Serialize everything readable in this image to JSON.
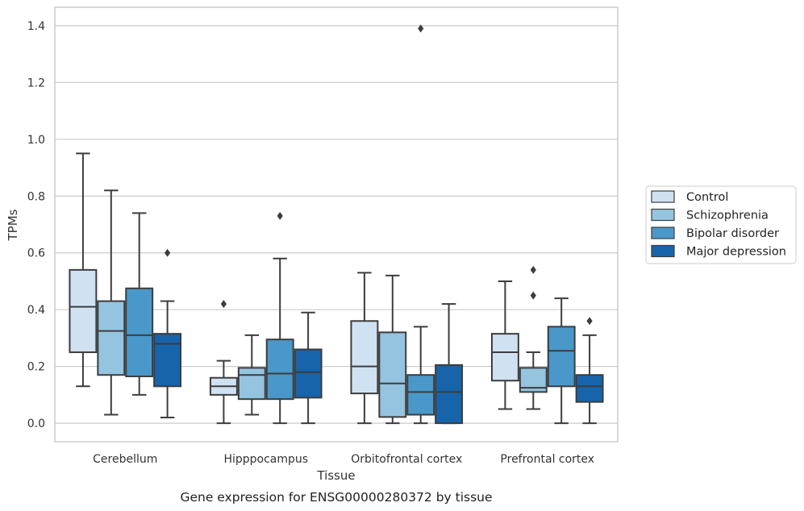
{
  "chart_data": {
    "type": "box",
    "xlabel": "Tissue",
    "ylabel": "TPMs",
    "caption": "Gene expression for ENSG00000280372 by tissue",
    "ylim": [
      -0.065,
      1.465
    ],
    "yticks": [
      "0.0",
      "0.2",
      "0.4",
      "0.6",
      "0.8",
      "1.0",
      "1.2",
      "1.4"
    ],
    "grid": "horizontal",
    "legend_position": "right",
    "categories": [
      "Cerebellum",
      "Hipppocampus",
      "Orbitofrontal cortex",
      "Prefrontal cortex"
    ],
    "series": [
      {
        "name": "Control",
        "color": "#d0e1f2",
        "boxes": [
          {
            "whislo": 0.13,
            "q1": 0.25,
            "med": 0.41,
            "q3": 0.54,
            "whishi": 0.95,
            "fliers": []
          },
          {
            "whislo": 0.0,
            "q1": 0.1,
            "med": 0.13,
            "q3": 0.16,
            "whishi": 0.22,
            "fliers": [
              0.42
            ]
          },
          {
            "whislo": 0.0,
            "q1": 0.105,
            "med": 0.2,
            "q3": 0.36,
            "whishi": 0.53,
            "fliers": []
          },
          {
            "whislo": 0.05,
            "q1": 0.15,
            "med": 0.25,
            "q3": 0.315,
            "whishi": 0.5,
            "fliers": []
          }
        ]
      },
      {
        "name": "Schizophrenia",
        "color": "#94c4df",
        "boxes": [
          {
            "whislo": 0.03,
            "q1": 0.17,
            "med": 0.325,
            "q3": 0.43,
            "whishi": 0.82,
            "fliers": []
          },
          {
            "whislo": 0.03,
            "q1": 0.085,
            "med": 0.17,
            "q3": 0.195,
            "whishi": 0.31,
            "fliers": []
          },
          {
            "whislo": 0.0,
            "q1": 0.022,
            "med": 0.14,
            "q3": 0.32,
            "whishi": 0.52,
            "fliers": []
          },
          {
            "whislo": 0.05,
            "q1": 0.11,
            "med": 0.125,
            "q3": 0.195,
            "whishi": 0.25,
            "fliers": [
              0.45,
              0.54
            ]
          }
        ]
      },
      {
        "name": "Bipolar disorder",
        "color": "#4a98c9",
        "boxes": [
          {
            "whislo": 0.1,
            "q1": 0.165,
            "med": 0.31,
            "q3": 0.475,
            "whishi": 0.74,
            "fliers": []
          },
          {
            "whislo": 0.0,
            "q1": 0.085,
            "med": 0.175,
            "q3": 0.295,
            "whishi": 0.58,
            "fliers": [
              0.73
            ]
          },
          {
            "whislo": 0.0,
            "q1": 0.03,
            "med": 0.11,
            "q3": 0.17,
            "whishi": 0.34,
            "fliers": [
              1.39
            ]
          },
          {
            "whislo": 0.0,
            "q1": 0.13,
            "med": 0.255,
            "q3": 0.34,
            "whishi": 0.44,
            "fliers": []
          }
        ]
      },
      {
        "name": "Major depression",
        "color": "#1764ab",
        "boxes": [
          {
            "whislo": 0.02,
            "q1": 0.13,
            "med": 0.28,
            "q3": 0.315,
            "whishi": 0.43,
            "fliers": [
              0.6
            ]
          },
          {
            "whislo": 0.0,
            "q1": 0.09,
            "med": 0.18,
            "q3": 0.26,
            "whishi": 0.39,
            "fliers": []
          },
          {
            "whislo": 0.0,
            "q1": 0.0,
            "med": 0.11,
            "q3": 0.205,
            "whishi": 0.42,
            "fliers": []
          },
          {
            "whislo": 0.0,
            "q1": 0.075,
            "med": 0.13,
            "q3": 0.17,
            "whishi": 0.31,
            "fliers": [
              0.36
            ]
          }
        ]
      }
    ]
  }
}
